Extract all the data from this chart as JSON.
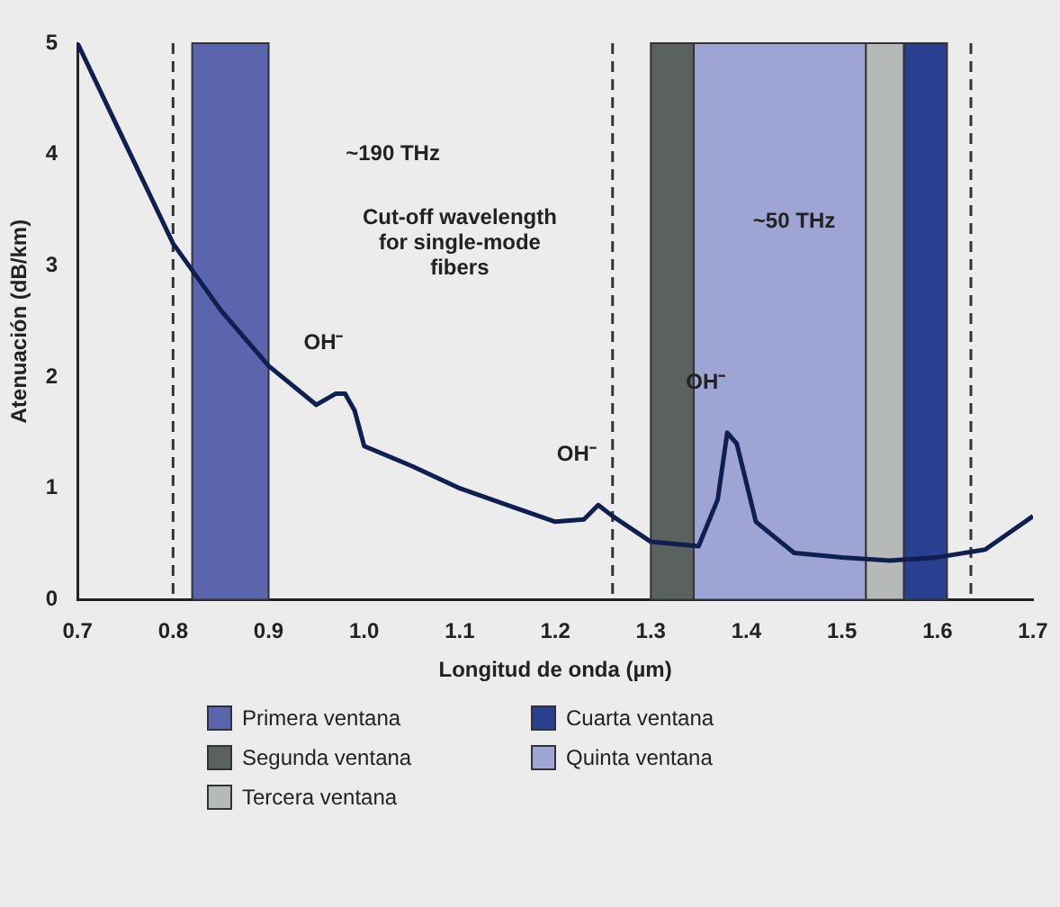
{
  "chart_data": {
    "type": "line",
    "xlabel": "Longitud de onda (µm)",
    "ylabel": "Atenuación (dB/km)",
    "x": [
      0.7,
      0.75,
      0.8,
      0.85,
      0.9,
      0.95,
      0.97,
      0.98,
      0.99,
      1.0,
      1.05,
      1.1,
      1.15,
      1.2,
      1.23,
      1.245,
      1.26,
      1.3,
      1.35,
      1.37,
      1.38,
      1.39,
      1.41,
      1.45,
      1.5,
      1.55,
      1.6,
      1.65,
      1.7
    ],
    "series": [
      {
        "color": "#0f1f4f",
        "values": [
          5.0,
          4.1,
          3.2,
          2.6,
          2.1,
          1.75,
          1.85,
          1.85,
          1.7,
          1.38,
          1.2,
          1.0,
          0.85,
          0.7,
          0.72,
          0.85,
          0.75,
          0.52,
          0.48,
          0.9,
          1.5,
          1.4,
          0.7,
          0.42,
          0.38,
          0.35,
          0.38,
          0.45,
          0.75
        ]
      }
    ],
    "xlim": [
      0.7,
      1.7
    ],
    "ylim": [
      0,
      5
    ],
    "xticks": [
      0.7,
      0.8,
      0.9,
      {
        "value": 1,
        "label": "1.0"
      },
      1.1,
      1.2,
      1.3,
      1.4,
      1.5,
      1.6,
      1.7
    ],
    "yticks": [
      0,
      1,
      2,
      3,
      4,
      5
    ],
    "marker": "none",
    "grid": false,
    "legend": "bottom",
    "bands": [
      {
        "axis": "x",
        "from": 0.82,
        "to": 0.9,
        "label": "Primera ventana",
        "color": "#5b65ad"
      },
      {
        "axis": "x",
        "from": 1.3,
        "to": 1.345,
        "label": "Segunda ventana",
        "color": "#5a6260"
      },
      {
        "axis": "x",
        "from": 1.525,
        "to": 1.565,
        "label": "Tercera ventana",
        "color": "#b5b9b8"
      },
      {
        "axis": "x",
        "from": 1.565,
        "to": 1.61,
        "label": "Cuarta ventana",
        "color": "#28408f"
      },
      {
        "axis": "x",
        "from": 1.345,
        "to": 1.525,
        "label": "Quinta ventana",
        "color": "#9ea5d4"
      }
    ],
    "ref_lines": [
      {
        "axis": "x",
        "value": 0.8,
        "line_style": "dashed",
        "color": "#333333"
      },
      {
        "axis": "x",
        "value": 1.26,
        "line_style": "dashed",
        "color": "#333333"
      },
      {
        "axis": "x",
        "value": 1.635,
        "line_style": "dashed",
        "color": "#333333"
      }
    ],
    "annotations": [
      "~190 THz",
      "Cut-off wavelength for single-mode fibers",
      "~50 THz",
      {
        "text": "OH⁻",
        "x": 0.98,
        "y": 1.85
      },
      {
        "text": "OH⁻",
        "x": 1.245,
        "y": 0.85
      },
      {
        "text": "OH⁻",
        "x": 1.38,
        "y": 1.5
      }
    ]
  }
}
